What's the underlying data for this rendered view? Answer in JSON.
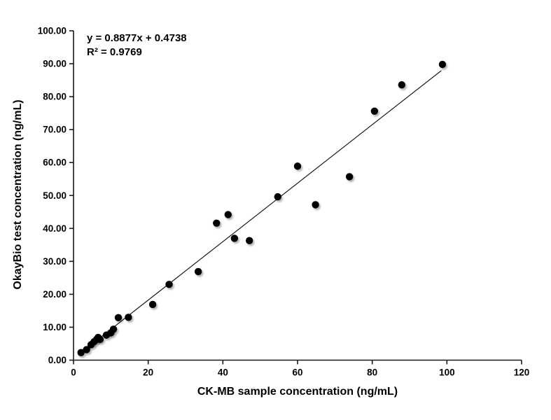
{
  "chart_data": {
    "type": "scatter",
    "title": "",
    "xlabel": "CK-MB sample concentration (ng/mL)",
    "ylabel": "OkayBio test concentration (ng/mL)",
    "xlim": [
      0,
      120
    ],
    "ylim": [
      0,
      100
    ],
    "grid": false,
    "legend": "none",
    "x_ticks": [
      0,
      20,
      40,
      60,
      80,
      100,
      120
    ],
    "x_tick_labels": [
      "0",
      "20",
      "40",
      "60",
      "80",
      "100",
      "120"
    ],
    "y_ticks": [
      0,
      10,
      20,
      30,
      40,
      50,
      60,
      70,
      80,
      90,
      100
    ],
    "y_tick_labels": [
      "0.00",
      "10.00",
      "20.00",
      "30.00",
      "40.00",
      "50.00",
      "60.00",
      "70.00",
      "80.00",
      "90.00",
      "100.00"
    ],
    "annotation": {
      "equation": "y = 0.8877x + 0.4738",
      "r_squared": "R² = 0.9769"
    },
    "trendline": {
      "slope": 0.8877,
      "intercept": 0.4738,
      "x_start": 2.0,
      "x_end": 98.5,
      "color": "#1a1a1a"
    },
    "marker": {
      "color": "#050505",
      "radius": 5.2
    },
    "axis_color": "#1a1a1a",
    "points": [
      [
        2.0,
        2.3
      ],
      [
        3.5,
        3.2
      ],
      [
        4.7,
        4.7
      ],
      [
        5.5,
        5.6
      ],
      [
        6.2,
        6.3
      ],
      [
        6.6,
        6.9
      ],
      [
        7.1,
        6.3
      ],
      [
        8.8,
        7.6
      ],
      [
        10.0,
        8.3
      ],
      [
        10.7,
        9.4
      ],
      [
        12.0,
        12.9
      ],
      [
        14.7,
        13.0
      ],
      [
        21.2,
        16.9
      ],
      [
        25.6,
        23.0
      ],
      [
        33.4,
        26.9
      ],
      [
        38.3,
        41.6
      ],
      [
        41.4,
        44.2
      ],
      [
        43.1,
        37.0
      ],
      [
        47.1,
        36.3
      ],
      [
        54.7,
        49.6
      ],
      [
        60.0,
        58.9
      ],
      [
        64.8,
        47.2
      ],
      [
        73.9,
        55.7
      ],
      [
        80.6,
        75.6
      ],
      [
        87.9,
        83.6
      ],
      [
        98.8,
        89.8
      ]
    ]
  }
}
